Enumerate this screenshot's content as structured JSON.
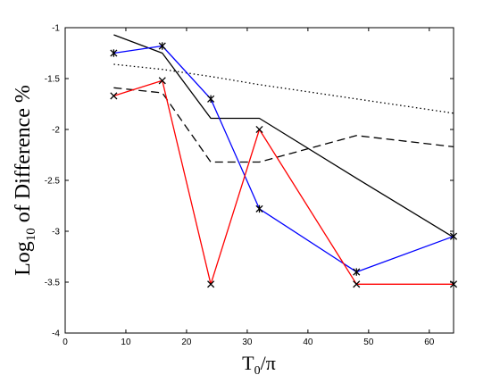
{
  "chart_data": {
    "type": "line",
    "xlabel": "T",
    "xlabel_sub": "0",
    "xlabel_tail": "/π",
    "ylabel": "Log",
    "ylabel_sub": "10",
    "ylabel_tail": " of Difference %",
    "xlim": [
      0,
      64
    ],
    "ylim": [
      -4,
      -1
    ],
    "xticks": [
      0,
      10,
      20,
      30,
      40,
      50,
      60
    ],
    "yticks": [
      -4,
      -3.5,
      -3,
      -2.5,
      -2,
      -1.5,
      -1
    ],
    "xtick_labels": [
      "0",
      "10",
      "20",
      "30",
      "40",
      "50",
      "60"
    ],
    "ytick_labels": [
      "-4",
      "-3.5",
      "-3",
      "-2.5",
      "-2",
      "-1.5",
      "-1"
    ],
    "grid": false,
    "series": [
      {
        "style": "dotted",
        "color": "#000000",
        "marker": "none",
        "x": [
          8,
          16,
          24,
          32,
          48,
          64
        ],
        "y": [
          -1.36,
          -1.41,
          -1.48,
          -1.56,
          -1.7,
          -1.84
        ]
      },
      {
        "style": "dashed",
        "color": "#000000",
        "marker": "none",
        "x": [
          8,
          16,
          24,
          32,
          48,
          64
        ],
        "y": [
          -1.59,
          -1.64,
          -2.32,
          -2.32,
          -2.06,
          -2.17
        ]
      },
      {
        "style": "solid",
        "color": "#000000",
        "marker": "none",
        "x": [
          8,
          16,
          24,
          32,
          48,
          64
        ],
        "y": [
          -1.07,
          -1.25,
          -1.89,
          -1.89,
          -2.48,
          -3.06
        ]
      },
      {
        "style": "solid",
        "color": "#0000ff",
        "marker": "star",
        "x": [
          8,
          16,
          24,
          32,
          48,
          64
        ],
        "y": [
          -1.25,
          -1.18,
          -1.7,
          -2.78,
          -3.4,
          -3.05
        ]
      },
      {
        "style": "solid",
        "color": "#ff0000",
        "marker": "x",
        "x": [
          8,
          16,
          24,
          32,
          48,
          64
        ],
        "y": [
          -1.67,
          -1.52,
          -3.52,
          -2.0,
          -3.52,
          -3.52
        ]
      }
    ]
  }
}
